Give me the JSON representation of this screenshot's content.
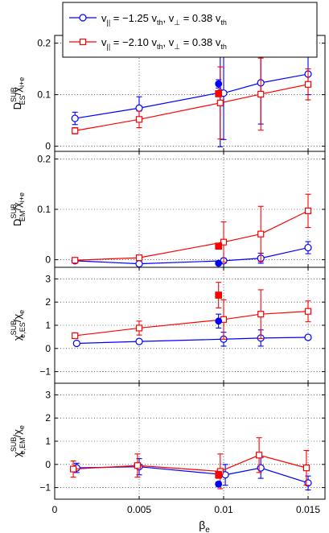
{
  "chart_data": [
    {
      "type": "line",
      "ylabel_main": "D",
      "ylabel_sup": "SUB",
      "ylabel_sub": "ES",
      "ylabel_rest": "/χ",
      "ylabel_rest_sub": "i+e",
      "ylim": [
        -0.01,
        0.215
      ],
      "ytick_values": [
        0,
        0.1,
        0.2
      ],
      "ytick_labels": [
        "0",
        "0.1",
        "0.2"
      ],
      "xlim": [
        0,
        0.016
      ],
      "grid": "dotted",
      "series": [
        {
          "legend_index": 0,
          "color": "#0000ff",
          "marker": "circle",
          "x": [
            0.0012,
            0.005,
            0.0098,
            0.01,
            0.0122,
            0.015
          ],
          "y": [
            0.054,
            0.074,
            0.104,
            0.103,
            0.123,
            0.14
          ],
          "err": [
            0.012,
            0.022,
            0.105,
            0.09,
            0.08,
            0.04
          ]
        },
        {
          "legend_index": 1,
          "color": "#ff0000",
          "marker": "square",
          "x": [
            0.0012,
            0.005,
            0.0098,
            0.0122,
            0.015
          ],
          "y": [
            0.03,
            0.052,
            0.084,
            0.101,
            0.12
          ],
          "err": [
            0.006,
            0.016,
            0.07,
            0.07,
            0.03
          ]
        }
      ],
      "filled_points": [
        {
          "color": "#0000ff",
          "marker": "circle",
          "x": 0.0097,
          "y": 0.121,
          "err": 0.008
        },
        {
          "color": "#ff0000",
          "marker": "square",
          "x": 0.0097,
          "y": 0.102,
          "err": 0.006
        }
      ]
    },
    {
      "type": "line",
      "ylabel_main": "D",
      "ylabel_sup": "SUB",
      "ylabel_sub": "EM",
      "ylabel_rest": "/χ",
      "ylabel_rest_sub": "i+e",
      "ylim": [
        -0.015,
        0.215
      ],
      "ytick_values": [
        0,
        0.1,
        0.2
      ],
      "ytick_labels": [
        "0",
        "0.1",
        "0.2"
      ],
      "xlim": [
        0,
        0.016
      ],
      "grid": "dotted",
      "series": [
        {
          "legend_index": 0,
          "color": "#0000ff",
          "marker": "circle",
          "x": [
            0.0012,
            0.005,
            0.01,
            0.0122,
            0.015
          ],
          "y": [
            -0.002,
            -0.008,
            -0.002,
            0.003,
            0.024
          ],
          "err": [
            0.002,
            0.003,
            0.005,
            0.01,
            0.012
          ]
        },
        {
          "legend_index": 1,
          "color": "#ff0000",
          "marker": "square",
          "x": [
            0.0012,
            0.005,
            0.01,
            0.0122,
            0.015
          ],
          "y": [
            -0.001,
            0.004,
            0.035,
            0.051,
            0.097
          ],
          "err": [
            0.001,
            0.003,
            0.04,
            0.055,
            0.033
          ]
        }
      ],
      "filled_points": [
        {
          "color": "#0000ff",
          "marker": "circle",
          "x": 0.0097,
          "y": -0.007,
          "err": 0.002
        },
        {
          "color": "#ff0000",
          "marker": "square",
          "x": 0.0097,
          "y": 0.027,
          "err": 0.005
        }
      ]
    },
    {
      "type": "line",
      "ylabel_main": "χ",
      "ylabel_sup": "SUB",
      "ylabel_sub": "e,ES",
      "ylabel_rest": "/χ",
      "ylabel_rest_sub": "e",
      "ylim": [
        -1.5,
        3.5
      ],
      "ytick_values": [
        -1,
        0,
        1,
        2,
        3
      ],
      "ytick_labels": [
        "−1",
        "0",
        "1",
        "2",
        "3"
      ],
      "xlim": [
        0,
        0.016
      ],
      "grid": "dotted",
      "series": [
        {
          "legend_index": 0,
          "color": "#0000ff",
          "marker": "circle",
          "x": [
            0.0013,
            0.005,
            0.01,
            0.0122,
            0.015
          ],
          "y": [
            0.22,
            0.3,
            0.4,
            0.45,
            0.48
          ],
          "err": [
            0.05,
            0.1,
            0.3,
            0.35,
            0.1
          ]
        },
        {
          "legend_index": 1,
          "color": "#ff0000",
          "marker": "square",
          "x": [
            0.0012,
            0.005,
            0.01,
            0.0122,
            0.015
          ],
          "y": [
            0.55,
            0.88,
            1.25,
            1.48,
            1.6
          ],
          "err": [
            0.1,
            0.3,
            0.85,
            1.05,
            0.45
          ]
        }
      ],
      "filled_points": [
        {
          "color": "#0000ff",
          "marker": "circle",
          "x": 0.0097,
          "y": 1.18,
          "err": 0.3
        },
        {
          "color": "#ff0000",
          "marker": "square",
          "x": 0.0097,
          "y": 2.3,
          "err": 0.55
        }
      ]
    },
    {
      "type": "line",
      "ylabel_main": "χ",
      "ylabel_sup": "SUB",
      "ylabel_sub": "e,EM",
      "ylabel_rest": "/χ",
      "ylabel_rest_sub": "e",
      "ylim": [
        -1.5,
        3.5
      ],
      "ytick_values": [
        -1,
        0,
        1,
        2,
        3
      ],
      "ytick_labels": [
        "−1",
        "0",
        "1",
        "2",
        "3"
      ],
      "xlim": [
        0,
        0.016
      ],
      "grid": "dotted",
      "xtick_values": [
        0,
        0.005,
        0.01,
        0.015
      ],
      "xtick_labels": [
        "0",
        "0.005",
        "0.01",
        "0.015"
      ],
      "xlabel_main": "β",
      "xlabel_sub": "e",
      "series": [
        {
          "legend_index": 0,
          "color": "#0000ff",
          "marker": "circle",
          "x": [
            0.0013,
            0.005,
            0.0101,
            0.0122,
            0.015
          ],
          "y": [
            -0.15,
            -0.1,
            -0.45,
            -0.15,
            -0.8
          ],
          "err": [
            0.2,
            0.35,
            0.45,
            0.45,
            0.3
          ]
        },
        {
          "legend_index": 1,
          "color": "#ff0000",
          "marker": "square",
          "x": [
            0.0011,
            0.0049,
            0.0098,
            0.0121,
            0.0149
          ],
          "y": [
            -0.2,
            -0.05,
            -0.3,
            0.4,
            -0.15
          ],
          "err": [
            0.35,
            0.5,
            0.75,
            0.75,
            0.75
          ]
        }
      ],
      "filled_points": [
        {
          "color": "#0000ff",
          "marker": "circle",
          "x": 0.0097,
          "y": -0.85,
          "err": 0.1
        },
        {
          "color": "#ff0000",
          "marker": "square",
          "x": 0.0097,
          "y": -0.45,
          "err": 0.15
        }
      ]
    }
  ],
  "legend": {
    "placement": "top-right",
    "entries": [
      {
        "color": "#0000ff",
        "marker": "circle",
        "par_main": "v",
        "par_sub": "||",
        "par_val": " = −1.25 v",
        "par_val_sub": "th",
        "perp_main": ", v",
        "perp_sub": "⊥",
        "perp_val": " = 0.38 v",
        "perp_val_sub": "th"
      },
      {
        "color": "#ff0000",
        "marker": "square",
        "par_main": "v",
        "par_sub": "||",
        "par_val": " = −2.10 v",
        "par_val_sub": "th",
        "perp_main": ", v",
        "perp_sub": "⊥",
        "perp_val": " = 0.38 v",
        "perp_val_sub": "th"
      }
    ]
  }
}
